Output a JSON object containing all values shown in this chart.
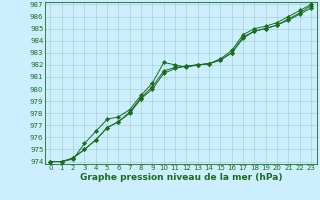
{
  "line1": [
    974.0,
    974.0,
    974.2,
    975.5,
    976.5,
    977.5,
    977.7,
    978.3,
    979.5,
    980.5,
    982.2,
    982.0,
    981.8,
    982.0,
    982.1,
    982.5,
    983.2,
    984.5,
    985.0,
    985.2,
    985.5,
    986.0,
    986.5,
    987.0
  ],
  "line2": [
    974.0,
    974.0,
    974.3,
    975.0,
    975.8,
    976.8,
    977.3,
    978.1,
    979.3,
    980.2,
    981.5,
    981.8,
    981.9,
    982.0,
    982.1,
    982.4,
    983.0,
    984.2,
    984.8,
    985.0,
    985.3,
    985.7,
    986.2,
    986.7
  ],
  "line3": [
    974.0,
    974.0,
    974.3,
    975.0,
    975.8,
    976.8,
    977.3,
    978.0,
    979.2,
    980.0,
    981.3,
    981.7,
    981.9,
    982.0,
    982.1,
    982.4,
    983.0,
    984.3,
    984.8,
    985.0,
    985.3,
    985.8,
    986.3,
    986.9
  ],
  "line_color": "#1a6e1a",
  "marker": "D",
  "marker_size": 2.2,
  "linewidth": 0.7,
  "bg_color": "#cceeff",
  "grid_color": "#99cccc",
  "xlabel": "Graphe pression niveau de la mer (hPa)",
  "ylim": [
    974,
    987
  ],
  "xlim": [
    0,
    23
  ],
  "yticks": [
    974,
    975,
    976,
    977,
    978,
    979,
    980,
    981,
    982,
    983,
    984,
    985,
    986,
    987
  ],
  "xticks": [
    0,
    1,
    2,
    3,
    4,
    5,
    6,
    7,
    8,
    9,
    10,
    11,
    12,
    13,
    14,
    15,
    16,
    17,
    18,
    19,
    20,
    21,
    22,
    23
  ],
  "tick_fontsize": 5.0,
  "xlabel_fontsize": 6.5,
  "tick_color": "#1a6e1a",
  "axis_color": "#1a6e1a"
}
